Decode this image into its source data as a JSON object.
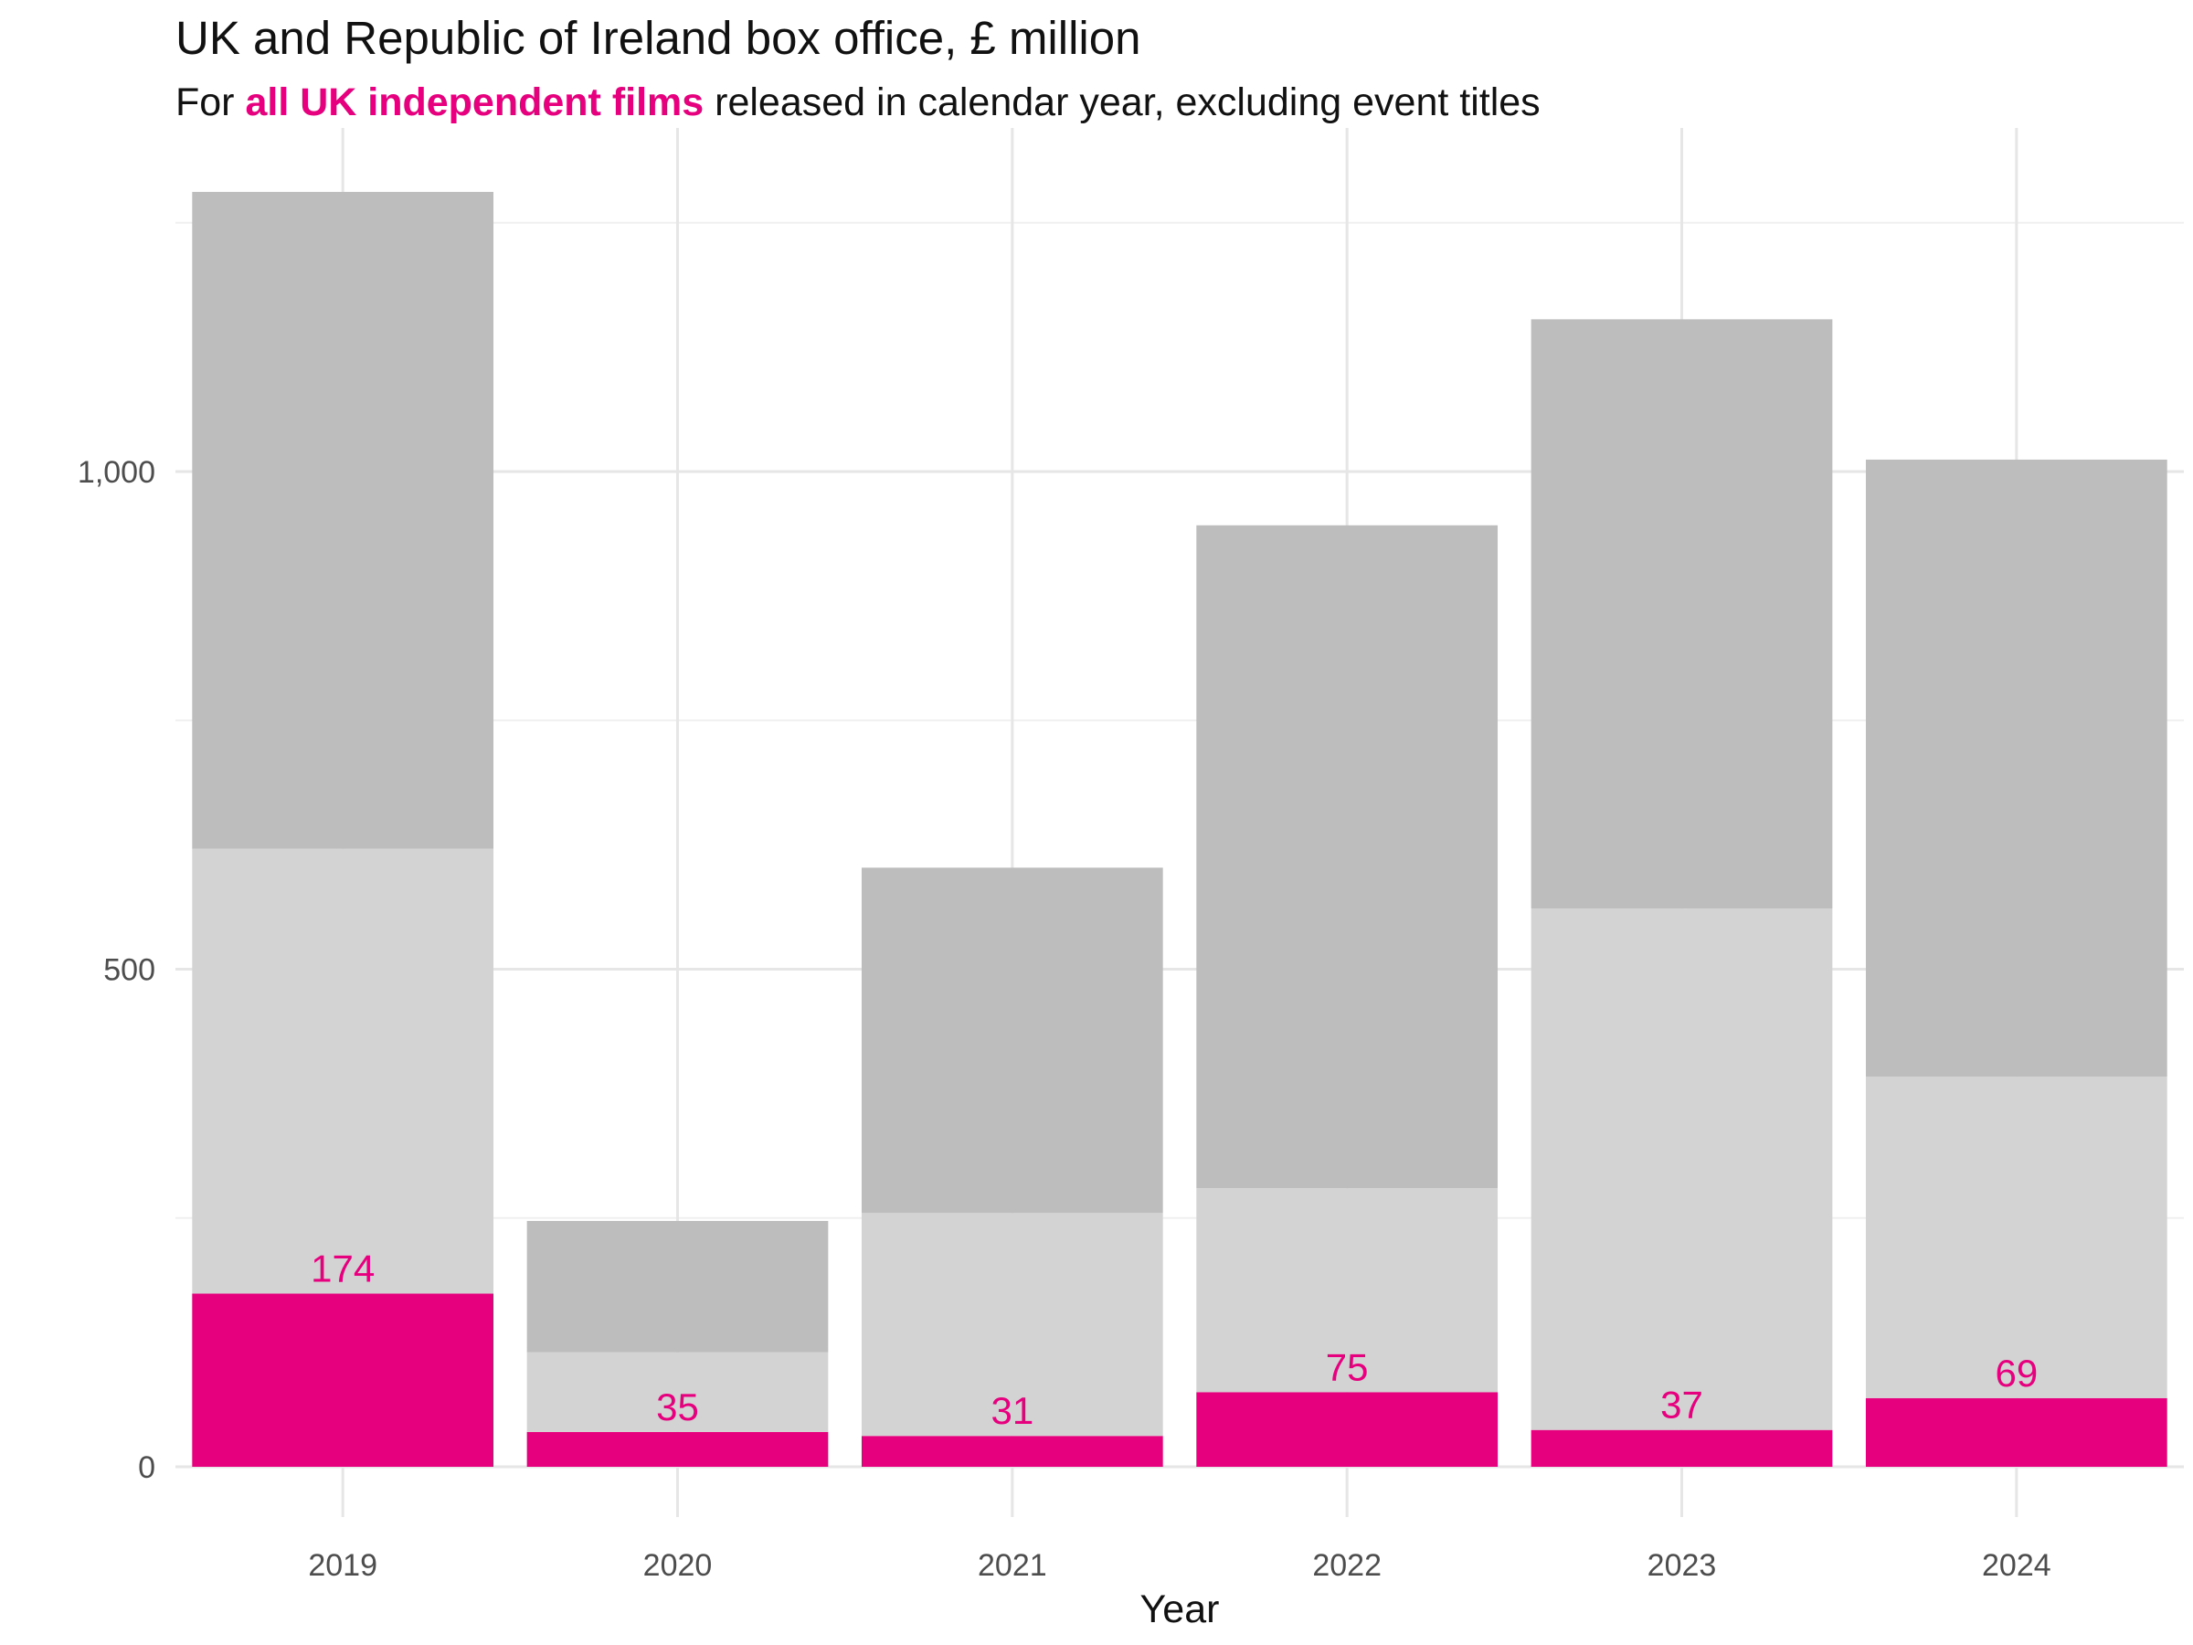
{
  "chart_data": {
    "type": "bar",
    "stacked": true,
    "title": "UK and Republic of Ireland box office, £ million",
    "subtitle": {
      "prefix": "For ",
      "highlight": "all UK independent films",
      "suffix": " released in calendar year, excluding event titles"
    },
    "xlabel": "Year",
    "ylabel": "",
    "categories": [
      "2019",
      "2020",
      "2021",
      "2022",
      "2023",
      "2024"
    ],
    "series": [
      {
        "values": [
          174,
          35,
          31,
          75,
          37,
          69
        ],
        "color": "#e6007e"
      },
      {
        "values": [
          447,
          80,
          224,
          205,
          524,
          323
        ],
        "color": "#d3d3d3"
      },
      {
        "values": [
          660,
          132,
          347,
          666,
          592,
          620
        ],
        "color": "#bdbdbd"
      }
    ],
    "data_labels": [
      "174",
      "35",
      "31",
      "75",
      "37",
      "69"
    ],
    "ylim": [
      0,
      1300
    ],
    "yticks": [
      0,
      500,
      1000
    ],
    "ytick_labels": [
      "0",
      "500",
      "1,000"
    ],
    "minor_gridlines": [
      250,
      750,
      1250
    ],
    "grid": true,
    "legend": "none",
    "highlight_color": "#e6007e"
  }
}
